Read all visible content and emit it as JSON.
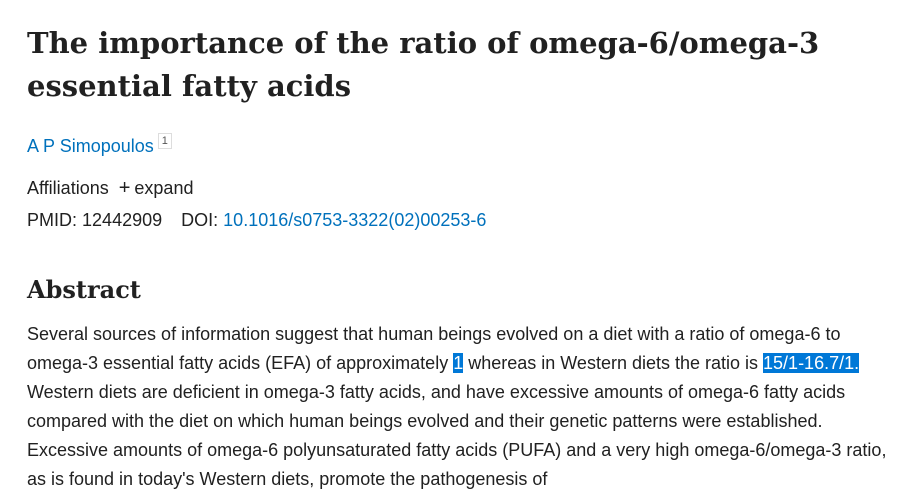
{
  "header": {
    "title": "The importance of the ratio of omega-6/omega-3 essential fatty acids",
    "authors": [
      {
        "name": "A P Simopoulos",
        "affiliation_ref": "1"
      }
    ],
    "affiliations_label": "Affiliations",
    "expand": "expand",
    "pmid_label": "PMID:",
    "pmid": "12442909",
    "doi_label": "DOI:",
    "doi": "10.1016/s0753-3322(02)00253-6"
  },
  "abstract": {
    "heading": "Abstract",
    "segments": [
      {
        "text": "Several sources of information suggest that human beings evolved on a diet with a ratio of omega-6 to omega-3 essential fatty acids (EFA) of approximately ",
        "selected": false
      },
      {
        "text": "1",
        "selected": true
      },
      {
        "text": " whereas in Western diets the ratio is ",
        "selected": false
      },
      {
        "text": "15/1-16.7/1.",
        "selected": true
      },
      {
        "text": " Western diets are deficient in omega-3 fatty acids, and have excessive amounts of omega-6 fatty acids compared with the diet on which human beings evolved and their genetic patterns were established. Excessive amounts of omega-6 polyunsaturated fatty acids (PUFA) and a very high omega-6/omega-3 ratio, as is found in today's Western diets, promote the pathogenesis of",
        "selected": false
      }
    ]
  }
}
